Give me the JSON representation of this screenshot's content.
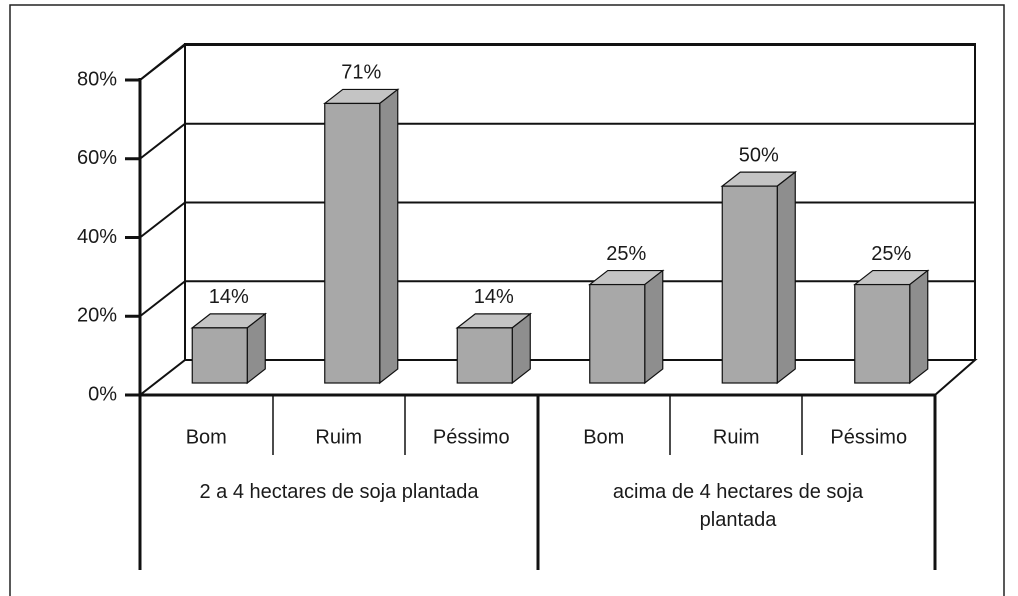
{
  "chart_data": {
    "type": "bar3d",
    "categories": [
      "Bom",
      "Ruim",
      "Péssimo",
      "Bom",
      "Ruim",
      "Péssimo"
    ],
    "values": [
      14,
      71,
      14,
      25,
      50,
      25
    ],
    "value_labels": [
      "14%",
      "71%",
      "14%",
      "25%",
      "50%",
      "25%"
    ],
    "group_labels": [
      "2 a 4 hectares de soja plantada",
      "acima de 4 hectares de soja plantada"
    ],
    "color": "#a8a8a8",
    "ylim": [
      0,
      80
    ],
    "yticks": [
      {
        "value": 0,
        "label": "0%"
      },
      {
        "value": 20,
        "label": "20%"
      },
      {
        "value": 40,
        "label": "40%"
      },
      {
        "value": 60,
        "label": "60%"
      },
      {
        "value": 80,
        "label": "80%"
      }
    ],
    "grid": true
  }
}
